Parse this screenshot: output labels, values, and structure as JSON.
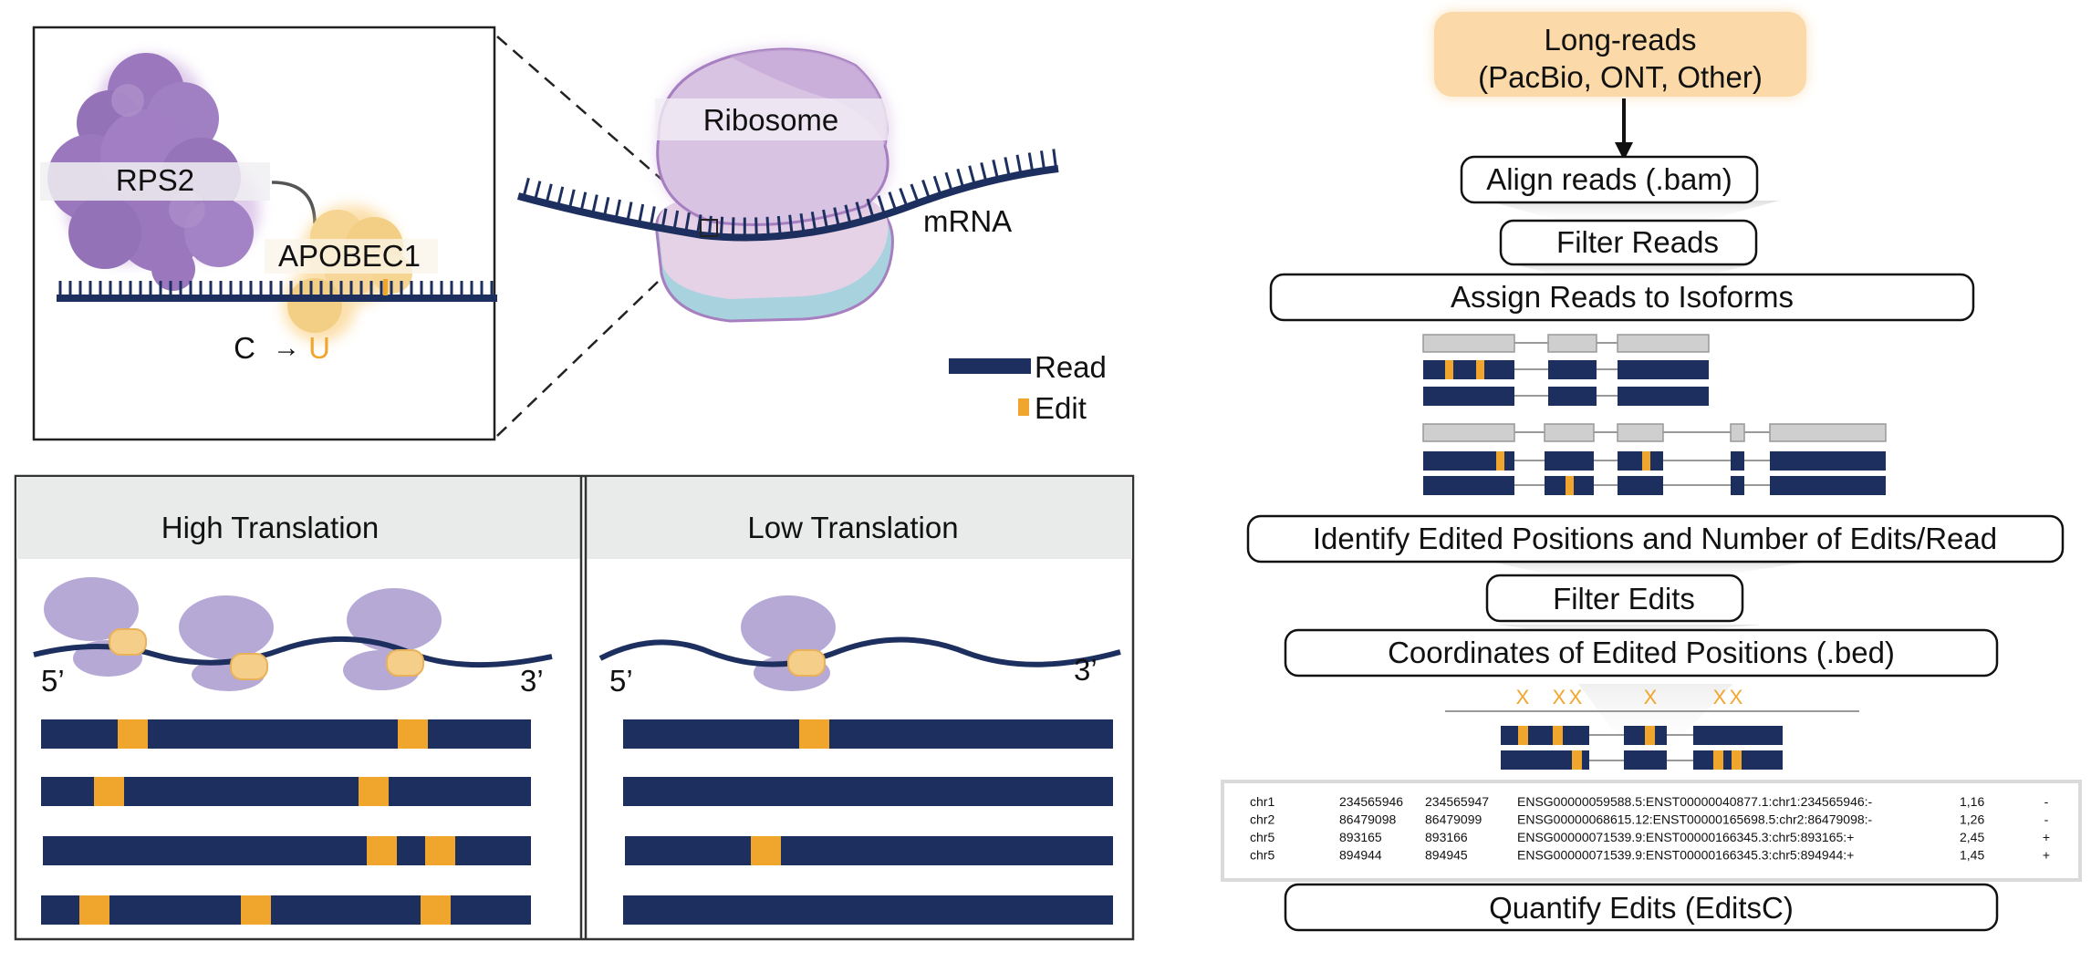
{
  "colors": {
    "read": "#1c2f5e",
    "edit": "#f0a52c",
    "ribosome": "#b7a9d6",
    "ribosome_dark": "#a77fc0",
    "rps2": "#9b78bd",
    "apobec": "#f5cf8a",
    "input_box": "#fbd9a8",
    "isoform_grey": "#cfcfcf",
    "panel_header": "#e9ebea",
    "strand_blue": "#a8d3de"
  },
  "mechanism": {
    "rps2_label": "RPS2",
    "apobec_label": "APOBEC1",
    "conversion_from": "C",
    "conversion_arrow": "→",
    "conversion_to": "U",
    "ribosome_label": "Ribosome",
    "mrna_label": "mRNA"
  },
  "legend": {
    "read_label": "Read",
    "edit_label": "Edit"
  },
  "panels": {
    "high": {
      "title": "High Translation",
      "five_prime": "5’",
      "three_prime": "3’"
    },
    "low": {
      "title": "Low Translation",
      "five_prime": "5’",
      "three_prime": "3’"
    }
  },
  "pipeline": {
    "input_line1": "Long-reads",
    "input_line2": "(PacBio, ONT, Other)",
    "step_align": "Align reads (.bam)",
    "step_filter_reads": "Filter Reads",
    "step_assign": "Assign Reads to Isoforms",
    "step_identify": "Identify Edited Positions and Number of Edits/Read",
    "step_filter_edits": "Filter Edits",
    "step_coordinates": "Coordinates of Edited Positions (.bed)",
    "step_quantify": "Quantify Edits (EditsC)",
    "edit_marker": "X"
  },
  "bed_table": {
    "rows": [
      [
        "chr1",
        "234565946",
        "234565947",
        "ENSG00000059588.5:ENST00000040877.1:chr1:234565946:-",
        "1,16",
        "-"
      ],
      [
        "chr2",
        "86479098",
        "86479099",
        "ENSG00000068615.12:ENST00000165698.5:chr2:86479098:-",
        "1,26",
        "-"
      ],
      [
        "chr5",
        "893165",
        "893166",
        "ENSG00000071539.9:ENST00000166345.3:chr5:893165:+",
        "2,45",
        "+"
      ],
      [
        "chr5",
        "894944",
        "894945",
        "ENSG00000071539.9:ENST00000166345.3:chr5:894944:+",
        "1,45",
        "+"
      ]
    ]
  }
}
